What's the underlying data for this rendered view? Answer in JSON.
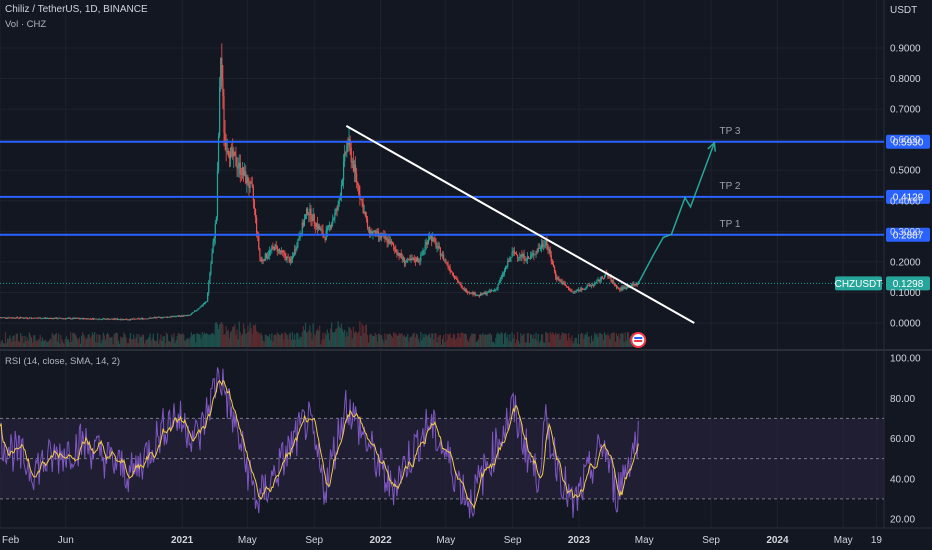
{
  "header": {
    "symbol": "Chiliz / TetherUS, 1D, BINANCE",
    "volume_label": "Vol · CHZ",
    "rsi_label": "RSI (14, close, SMA, 14, 2)"
  },
  "colors": {
    "background": "#131722",
    "grid": "#1e222d",
    "up": "#26a69a",
    "down": "#ef5350",
    "level": "#2962ff",
    "trendline": "#ffffff",
    "projection": "#26a69a",
    "rsi": "#7e57c2",
    "rsi_ma": "#f2c94c",
    "rsi_band": "#2a2540"
  },
  "chart_data": [
    {
      "type": "candlestick",
      "title": "Chiliz / TetherUS, 1D, BINANCE",
      "ylabel": "USDT",
      "ylim": [
        -0.05,
        1.0
      ],
      "yticks": [
        0.0,
        0.1,
        0.2,
        0.3,
        0.4,
        0.5,
        0.6,
        0.7,
        0.8,
        0.9
      ],
      "ytick_labels": [
        "0.0000",
        "0.1000",
        "0.2000",
        "0.3000",
        "0.4000",
        "0.5000",
        "0.6000",
        "0.7000",
        "0.8000",
        "0.9000"
      ],
      "xaxis": {
        "range": [
          "2020-02-01",
          "2024-07-15"
        ],
        "ticks": [
          {
            "date": "2020-02-01",
            "label": "Feb",
            "year": false
          },
          {
            "date": "2020-06-01",
            "label": "Jun",
            "year": false
          },
          {
            "date": "2021-01-01",
            "label": "2021",
            "year": true
          },
          {
            "date": "2021-05-01",
            "label": "May",
            "year": false
          },
          {
            "date": "2021-09-01",
            "label": "Sep",
            "year": false
          },
          {
            "date": "2022-01-01",
            "label": "2022",
            "year": true
          },
          {
            "date": "2022-05-01",
            "label": "May",
            "year": false
          },
          {
            "date": "2022-09-01",
            "label": "Sep",
            "year": false
          },
          {
            "date": "2023-01-01",
            "label": "2023",
            "year": true
          },
          {
            "date": "2023-05-01",
            "label": "May",
            "year": false
          },
          {
            "date": "2023-09-01",
            "label": "Sep",
            "year": false
          },
          {
            "date": "2024-01-01",
            "label": "2024",
            "year": true
          },
          {
            "date": "2024-05-01",
            "label": "May",
            "year": false
          },
          {
            "date": "2024-07-01",
            "label": "19",
            "year": false
          }
        ]
      },
      "price_path": [
        [
          "2020-02-01",
          0.018
        ],
        [
          "2020-10-01",
          0.012
        ],
        [
          "2021-01-15",
          0.025
        ],
        [
          "2021-02-15",
          0.07
        ],
        [
          "2021-03-05",
          0.35
        ],
        [
          "2021-03-13",
          0.88
        ],
        [
          "2021-03-20",
          0.6
        ],
        [
          "2021-04-01",
          0.55
        ],
        [
          "2021-04-20",
          0.5
        ],
        [
          "2021-05-10",
          0.43
        ],
        [
          "2021-05-25",
          0.2
        ],
        [
          "2021-06-20",
          0.25
        ],
        [
          "2021-07-20",
          0.2
        ],
        [
          "2021-08-20",
          0.37
        ],
        [
          "2021-09-20",
          0.28
        ],
        [
          "2021-10-15",
          0.38
        ],
        [
          "2021-11-01",
          0.6
        ],
        [
          "2021-11-20",
          0.45
        ],
        [
          "2021-12-10",
          0.3
        ],
        [
          "2022-01-15",
          0.27
        ],
        [
          "2022-02-15",
          0.2
        ],
        [
          "2022-03-15",
          0.21
        ],
        [
          "2022-04-01",
          0.29
        ],
        [
          "2022-05-01",
          0.2
        ],
        [
          "2022-06-01",
          0.11
        ],
        [
          "2022-07-01",
          0.09
        ],
        [
          "2022-08-01",
          0.11
        ],
        [
          "2022-09-01",
          0.23
        ],
        [
          "2022-10-01",
          0.21
        ],
        [
          "2022-11-01",
          0.27
        ],
        [
          "2022-11-20",
          0.15
        ],
        [
          "2022-12-20",
          0.1
        ],
        [
          "2023-02-01",
          0.13
        ],
        [
          "2023-02-20",
          0.16
        ],
        [
          "2023-03-15",
          0.11
        ],
        [
          "2023-04-20",
          0.13
        ]
      ],
      "levels": [
        {
          "value": 0.593,
          "label": "0.5930"
        },
        {
          "value": 0.4129,
          "label": "0.4129"
        },
        {
          "value": 0.2887,
          "label": "0.2887"
        }
      ],
      "last_price": {
        "symbol": "CHZUSDT",
        "value": 0.1298,
        "label": "0.1298"
      },
      "targets": [
        {
          "label": "TP 1",
          "value": 0.2887
        },
        {
          "label": "TP 2",
          "value": 0.4129
        },
        {
          "label": "TP 3",
          "value": 0.593
        }
      ],
      "trendline": [
        [
          "2021-10-30",
          0.645
        ],
        [
          "2023-08-01",
          0.0
        ]
      ],
      "projection": [
        [
          "2023-04-20",
          0.13
        ],
        [
          "2023-05-20",
          0.23
        ],
        [
          "2023-06-05",
          0.28
        ],
        [
          "2023-06-20",
          0.29
        ],
        [
          "2023-07-15",
          0.41
        ],
        [
          "2023-07-25",
          0.38
        ],
        [
          "2023-08-15",
          0.48
        ],
        [
          "2023-09-07",
          0.59
        ]
      ]
    },
    {
      "type": "line",
      "title": "RSI (14, close, SMA, 14, 2)",
      "ylim": [
        15,
        105
      ],
      "yticks": [
        20,
        40,
        60,
        80,
        100
      ],
      "ytick_labels": [
        "20.00",
        "40.00",
        "60.00",
        "80.00",
        "100.00"
      ],
      "bands": [
        30,
        50,
        70
      ],
      "series": [
        {
          "name": "RSI",
          "points": [
            [
              "2020-02-01",
              60
            ],
            [
              "2020-04-01",
              45
            ],
            [
              "2020-07-01",
              58
            ],
            [
              "2020-10-01",
              42
            ],
            [
              "2020-12-15",
              72
            ],
            [
              "2021-02-01",
              60
            ],
            [
              "2021-03-10",
              93
            ],
            [
              "2021-05-20",
              28
            ],
            [
              "2021-08-20",
              70
            ],
            [
              "2021-09-20",
              35
            ],
            [
              "2021-10-30",
              78
            ],
            [
              "2022-01-20",
              35
            ],
            [
              "2022-04-01",
              68
            ],
            [
              "2022-06-15",
              28
            ],
            [
              "2022-09-01",
              75
            ],
            [
              "2022-10-15",
              40
            ],
            [
              "2022-11-01",
              66
            ],
            [
              "2022-12-20",
              25
            ],
            [
              "2023-02-15",
              58
            ],
            [
              "2023-03-10",
              32
            ],
            [
              "2023-04-20",
              62
            ]
          ]
        }
      ]
    }
  ]
}
